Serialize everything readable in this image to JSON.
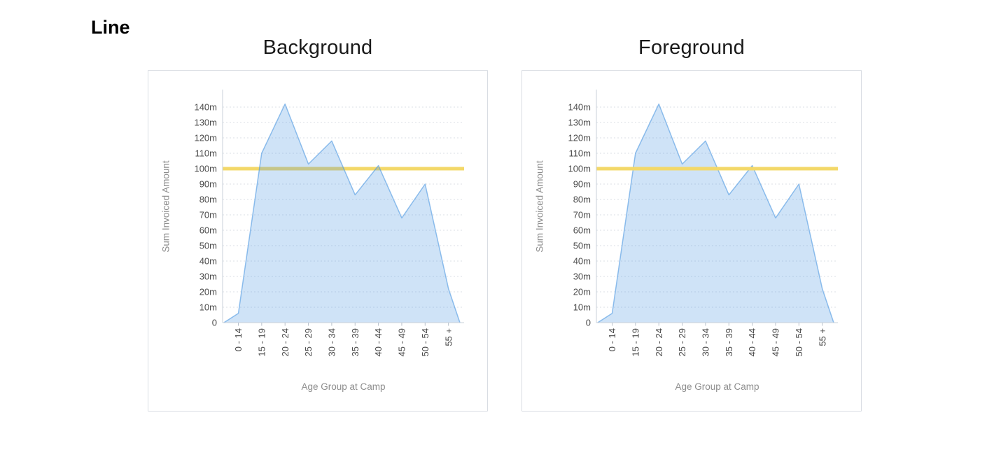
{
  "page": {
    "label": "Line"
  },
  "charts": [
    {
      "title": "Background",
      "draw_time": "background"
    },
    {
      "title": "Foreground",
      "draw_time": "foreground"
    }
  ],
  "chart_data": {
    "type": "area",
    "title": "",
    "xlabel": "Age Group at Camp",
    "ylabel": "Sum Invoiced Amount",
    "categories": [
      "0 - 14",
      "15 - 19",
      "20 - 24",
      "25 - 29",
      "30 - 34",
      "35 - 39",
      "40 - 44",
      "45 - 49",
      "50 - 54",
      "55 +"
    ],
    "values": [
      6,
      110,
      142,
      103,
      118,
      83,
      102,
      68,
      90,
      22
    ],
    "edge_taper": "area tapers to 0 roughly half a band before the first and after the last category",
    "ylim": [
      0,
      140
    ],
    "y_tick_step": 10,
    "y_tick_suffix": "m",
    "y_zero_label": "0",
    "grid": "dashed horizontal gridlines every 10m",
    "legend": "none",
    "x_tick_label_rotation_deg": -90,
    "reference_line": {
      "value": 100,
      "color": "#f3d869",
      "thickness": 5,
      "meaning": "horizontal line annotation at 100m"
    },
    "colors": {
      "area_base": "#4d97e1",
      "area_fill_alpha": 0.27,
      "area_stroke_alpha": 0.6,
      "axis_line": "#c9d0da",
      "gridline": "#dbdfe5",
      "tick_mark": "#b8c0cb",
      "tick_label": "#4a4a4a",
      "axis_title": "#8d8d8d",
      "chart_title": "#1a1a1a"
    }
  }
}
